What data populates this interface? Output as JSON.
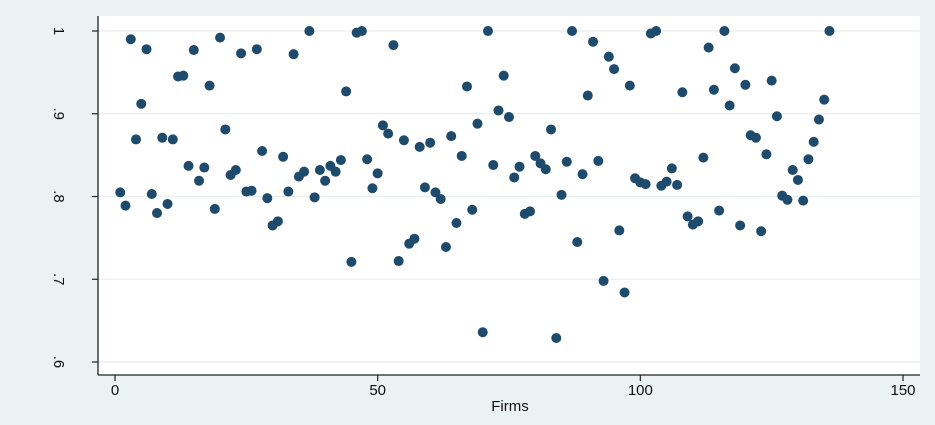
{
  "chart_data": {
    "type": "scatter",
    "title": "",
    "xlabel": "Firms",
    "ylabel": "",
    "xlim": [
      -3,
      155
    ],
    "ylim": [
      0.6,
      1.0
    ],
    "xticks": [
      0,
      50,
      100,
      150
    ],
    "xtick_labels": [
      "0",
      "50",
      "100",
      "150"
    ],
    "yticks": [
      0.6,
      0.7,
      0.8,
      0.9,
      1.0
    ],
    "ytick_labels": [
      ".6",
      ".7",
      ".8",
      ".9",
      "1"
    ],
    "grid": true,
    "legend": "none",
    "colors": {
      "marker": "#1e4a6b",
      "background": "#eaf2f3",
      "plot_area": "#ffffff",
      "grid": "#e8eef0",
      "axis": "#222222"
    },
    "series": [
      {
        "x": [
          1,
          2,
          3,
          4,
          5,
          6,
          7,
          8,
          9,
          10,
          11,
          12,
          13,
          14,
          15,
          16,
          17,
          18,
          19,
          20,
          21,
          22,
          23,
          24,
          25,
          26,
          27,
          28,
          29,
          30,
          31,
          32,
          33,
          34,
          35,
          36,
          37,
          38,
          39,
          40,
          41,
          42,
          43,
          44,
          45,
          46,
          47,
          48,
          49,
          50,
          51,
          52,
          53,
          54,
          55,
          56,
          57,
          58,
          59,
          60,
          61,
          62,
          63,
          64,
          65,
          66,
          67,
          68,
          69,
          70,
          71,
          72,
          73,
          74,
          75,
          76,
          77,
          78,
          79,
          80,
          81,
          82,
          83,
          84,
          85,
          86,
          87,
          88,
          89,
          90,
          91,
          92,
          93,
          94,
          95,
          96,
          97,
          98,
          99,
          100,
          101,
          102,
          103,
          104,
          105,
          106,
          107,
          108,
          109,
          110,
          111,
          112,
          113,
          114,
          115,
          116,
          117,
          118,
          119,
          120,
          121,
          122,
          123,
          124,
          125,
          126,
          127,
          128,
          129,
          130,
          131,
          132,
          133,
          134,
          135,
          136
        ],
        "y": [
          0.805,
          0.789,
          0.99,
          0.869,
          0.912,
          0.978,
          0.803,
          0.78,
          0.871,
          0.791,
          0.869,
          0.945,
          0.946,
          0.837,
          0.977,
          0.819,
          0.835,
          0.934,
          0.785,
          0.992,
          0.881,
          0.826,
          0.832,
          0.973,
          0.806,
          0.807,
          0.978,
          0.855,
          0.798,
          0.765,
          0.77,
          0.848,
          0.806,
          0.972,
          0.824,
          0.83,
          1.0,
          0.799,
          0.832,
          0.819,
          0.837,
          0.83,
          0.844,
          0.927,
          0.721,
          0.998,
          1.0,
          0.845,
          0.81,
          0.828,
          0.886,
          0.876,
          0.983,
          0.722,
          0.868,
          0.743,
          0.749,
          0.86,
          0.811,
          0.865,
          0.805,
          0.797,
          0.739,
          0.873,
          0.768,
          0.849,
          0.933,
          0.784,
          0.888,
          0.636,
          1.0,
          0.838,
          0.904,
          0.946,
          0.896,
          0.823,
          0.836,
          0.779,
          0.782,
          0.849,
          0.84,
          0.833,
          0.881,
          0.629,
          0.802,
          0.842,
          1.0,
          0.745,
          0.827,
          0.922,
          0.987,
          0.843,
          0.698,
          0.969,
          0.954,
          0.759,
          0.684,
          0.934,
          0.822,
          0.817,
          0.815,
          0.997,
          1.0,
          0.813,
          0.818,
          0.834,
          0.814,
          0.926,
          0.776,
          0.766,
          0.77,
          0.847,
          0.98,
          0.929,
          0.783,
          1.0,
          0.91,
          0.955,
          0.765,
          0.935,
          0.874,
          0.871,
          0.758,
          0.851,
          0.94,
          0.897,
          0.801,
          0.796,
          0.832,
          0.82,
          0.795,
          0.845,
          0.866,
          0.893,
          0.917,
          1.0
        ]
      }
    ]
  }
}
